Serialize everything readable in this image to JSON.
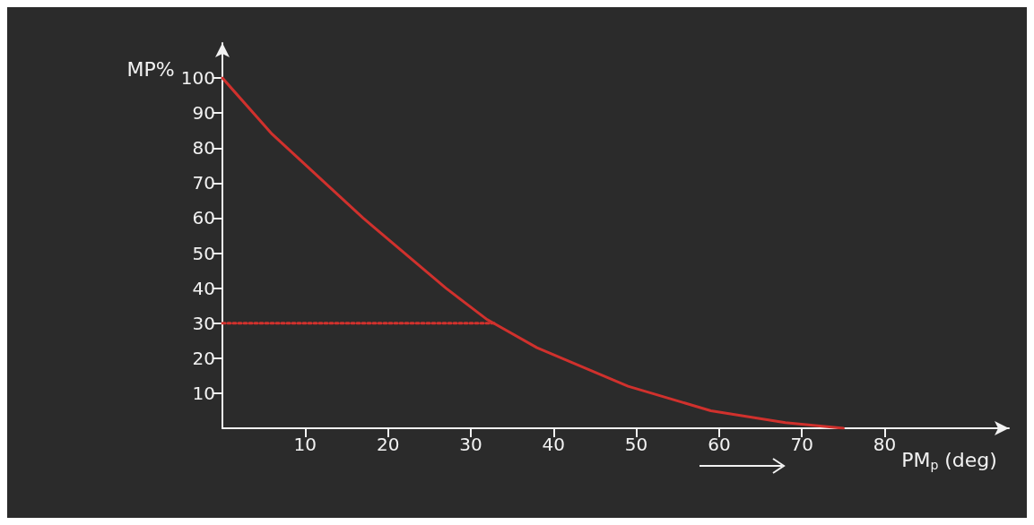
{
  "chart_data": {
    "type": "line",
    "xlabel": "PM$_{p}$ (deg)",
    "ylabel": "MP%",
    "xlim": [
      0,
      95
    ],
    "ylim": [
      0,
      110
    ],
    "xticks": [
      10,
      20,
      30,
      40,
      50,
      60,
      70,
      80
    ],
    "yticks": [
      10,
      20,
      30,
      40,
      50,
      60,
      70,
      80,
      90,
      100
    ],
    "grid": false,
    "marker": "none",
    "series": [
      {
        "color": "#d0312d",
        "line_style": "solid",
        "x": [
          0,
          6,
          17,
          27,
          32,
          38,
          49,
          59,
          68,
          75
        ],
        "values": [
          100,
          84,
          60,
          40,
          31,
          23,
          12,
          5,
          1.6,
          0
        ]
      },
      {
        "color": "#d0312d",
        "line_style": "dotted",
        "x": [
          0,
          33
        ],
        "values": [
          30,
          30
        ]
      }
    ]
  }
}
